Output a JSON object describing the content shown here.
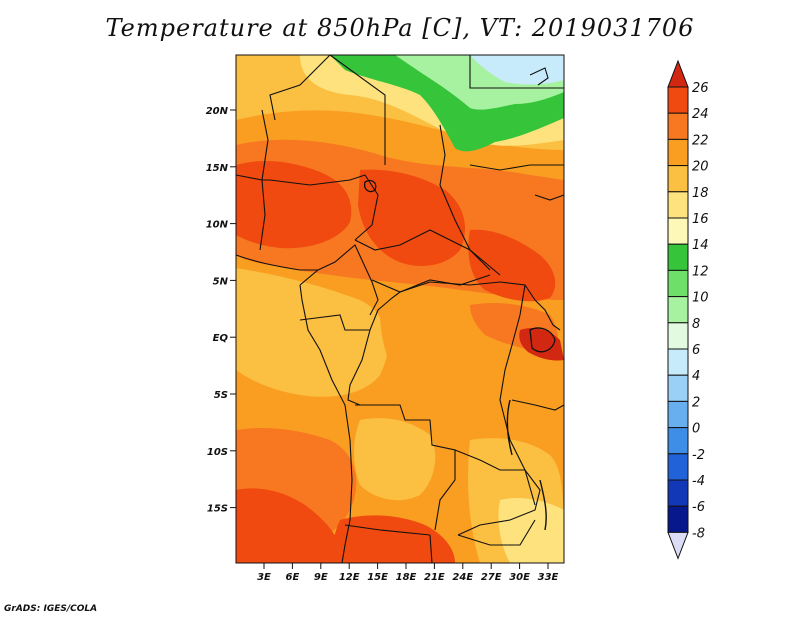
{
  "title": "Temperature at 850hPa [C], VT: 2019031706",
  "credit": "GrADS: IGES/COLA",
  "map": {
    "lat_ticks": [
      "20N",
      "15N",
      "10N",
      "5N",
      "EQ",
      "5S",
      "10S",
      "15S"
    ],
    "lon_ticks": [
      "3E",
      "6E",
      "9E",
      "12E",
      "15E",
      "18E",
      "21E",
      "24E",
      "27E",
      "30E",
      "33E"
    ]
  },
  "colorbar": {
    "levels": [
      "26",
      "24",
      "22",
      "20",
      "18",
      "16",
      "14",
      "12",
      "10",
      "8",
      "6",
      "4",
      "2",
      "0",
      "-2",
      "-4",
      "-6",
      "-8"
    ],
    "colors": [
      "#d22812",
      "#f04a10",
      "#f77820",
      "#f99e20",
      "#fbbf42",
      "#fde27e",
      "#fdf7b8",
      "#36c43a",
      "#6ee06a",
      "#a6f2a0",
      "#e2fbe0",
      "#c8ebfb",
      "#9acff6",
      "#68aff0",
      "#3e8ee8",
      "#2262d8",
      "#1238b8",
      "#07178c",
      "#dcdcf6"
    ]
  },
  "field_colors": {
    "very_hot": "#d22812",
    "hot": "#f04a10",
    "warm": "#f77820",
    "mild": "#f99e20",
    "cool": "#fbbf42",
    "cooler": "#fde27e",
    "cold_green": "#36c43a",
    "light_green": "#a6f2a0",
    "cyan": "#c8ebfb"
  }
}
